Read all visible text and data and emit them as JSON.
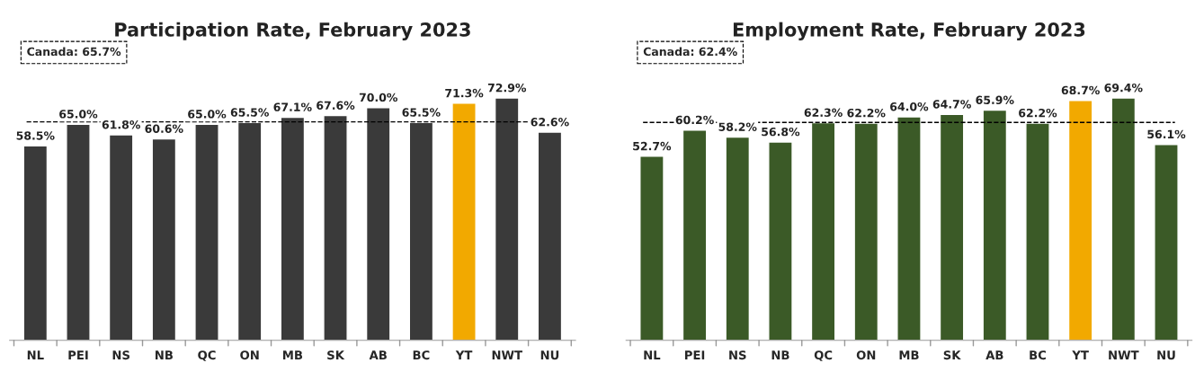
{
  "chart_data": [
    {
      "type": "bar",
      "title": "Participation Rate, February 2023",
      "categories": [
        "NL",
        "PEI",
        "NS",
        "NB",
        "QC",
        "ON",
        "MB",
        "SK",
        "AB",
        "BC",
        "YT",
        "NWT",
        "NU"
      ],
      "values": [
        58.5,
        65.0,
        61.8,
        60.6,
        65.0,
        65.5,
        67.1,
        67.6,
        70.0,
        65.5,
        71.3,
        72.9,
        62.6
      ],
      "colors": [
        "#3a3a3a",
        "#3a3a3a",
        "#3a3a3a",
        "#3a3a3a",
        "#3a3a3a",
        "#3a3a3a",
        "#3a3a3a",
        "#3a3a3a",
        "#3a3a3a",
        "#3a3a3a",
        "#f2a900",
        "#3a3a3a",
        "#3a3a3a"
      ],
      "value_labels": [
        "58.5%",
        "65.0%",
        "61.8%",
        "60.6%",
        "65.0%",
        "65.5%",
        "67.1%",
        "67.6%",
        "70.0%",
        "65.5%",
        "71.3%",
        "72.9%",
        "62.6%"
      ],
      "ref_lines": [
        {
          "axis": "y",
          "value": 65.7,
          "label": "Canada: 65.7%",
          "color": "#000000",
          "line_style": "dashed"
        }
      ],
      "tick_labels": "x",
      "grid": false,
      "legend": false
    },
    {
      "type": "bar",
      "title": "Employment Rate, February 2023",
      "categories": [
        "NL",
        "PEI",
        "NS",
        "NB",
        "QC",
        "ON",
        "MB",
        "SK",
        "AB",
        "BC",
        "YT",
        "NWT",
        "NU"
      ],
      "values": [
        52.7,
        60.2,
        58.2,
        56.8,
        62.3,
        62.2,
        64.0,
        64.7,
        65.9,
        62.2,
        68.7,
        69.4,
        56.1
      ],
      "colors": [
        "#3b5a27",
        "#3b5a27",
        "#3b5a27",
        "#3b5a27",
        "#3b5a27",
        "#3b5a27",
        "#3b5a27",
        "#3b5a27",
        "#3b5a27",
        "#3b5a27",
        "#f2a900",
        "#3b5a27",
        "#3b5a27"
      ],
      "value_labels": [
        "52.7%",
        "60.2%",
        "58.2%",
        "56.8%",
        "62.3%",
        "62.2%",
        "64.0%",
        "64.7%",
        "65.9%",
        "62.2%",
        "68.7%",
        "69.4%",
        "56.1%"
      ],
      "ref_lines": [
        {
          "axis": "y",
          "value": 62.4,
          "label": "Canada: 62.4%",
          "color": "#000000",
          "line_style": "dashed"
        }
      ],
      "tick_labels": "x",
      "grid": false,
      "legend": false
    }
  ]
}
